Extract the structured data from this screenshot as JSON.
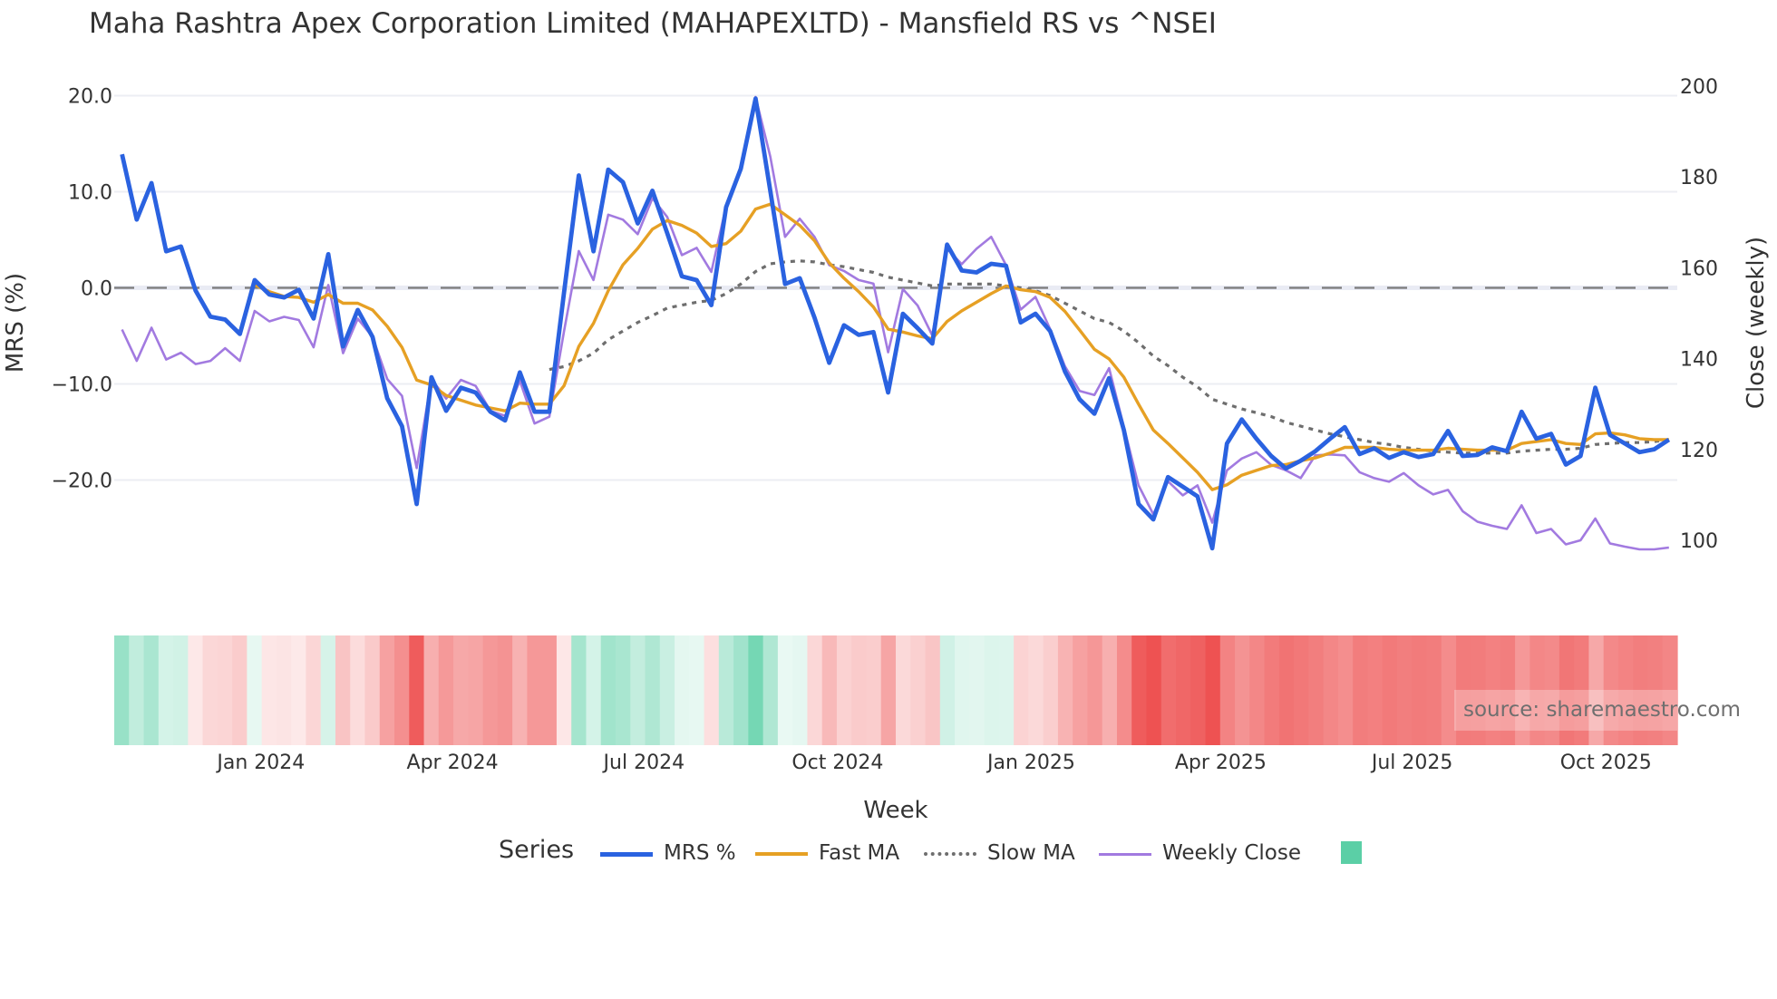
{
  "title": "Maha Rashtra Apex Corporation Limited (MAHAPEXLTD) - Mansfield RS vs ^NSEI",
  "source_label": "source: sharemaestro.com",
  "colors": {
    "mrs": "#2a62e0",
    "fast_ma": "#e6a024",
    "slow_ma": "#6e6e6e",
    "close": "#a27ae0",
    "heat_pos": "#5bcfa6",
    "heat_neg": "#ee5252",
    "zero_line": "#7a7a7a",
    "grid": "#eceef3"
  },
  "legend": {
    "title": "Series",
    "items": [
      {
        "label": "MRS %",
        "key": "mrs"
      },
      {
        "label": "Fast MA",
        "key": "fast_ma"
      },
      {
        "label": "Slow MA",
        "key": "slow_ma"
      },
      {
        "label": "Weekly Close",
        "key": "close"
      },
      {
        "label": "",
        "key": "heat"
      }
    ]
  },
  "chart_data": {
    "type": "line",
    "title": "Maha Rashtra Apex Corporation Limited (MAHAPEXLTD) - Mansfield RS vs ^NSEI",
    "xlabel": "Week",
    "ylabel": "MRS (%)",
    "y2label": "Close (weekly)",
    "x_start": "2023-10-27",
    "x_step_days": 7,
    "x_ticks": [
      {
        "date": "2024-01-01",
        "label": "Jan 2024"
      },
      {
        "date": "2024-04-01",
        "label": "Apr 2024"
      },
      {
        "date": "2024-07-01",
        "label": "Jul 2024"
      },
      {
        "date": "2024-10-01",
        "label": "Oct 2024"
      },
      {
        "date": "2025-01-01",
        "label": "Jan 2025"
      },
      {
        "date": "2025-04-01",
        "label": "Apr 2025"
      },
      {
        "date": "2025-07-01",
        "label": "Jul 2025"
      },
      {
        "date": "2025-10-01",
        "label": "Oct 2025"
      }
    ],
    "y_ticks": [
      {
        "v": 20,
        "label": "20.0"
      },
      {
        "v": 10,
        "label": "10.0"
      },
      {
        "v": 0,
        "label": "0.0"
      },
      {
        "v": -10,
        "label": "−10.0"
      },
      {
        "v": -20,
        "label": "−20.0"
      }
    ],
    "y2_ticks": [
      {
        "v": 200,
        "label": "200"
      },
      {
        "v": 180,
        "label": "180"
      },
      {
        "v": 160,
        "label": "160"
      },
      {
        "v": 140,
        "label": "140"
      },
      {
        "v": 120,
        "label": "120"
      },
      {
        "v": 100,
        "label": "100"
      }
    ],
    "grid": true,
    "legend_position": "bottom",
    "series": [
      {
        "name": "MRS %",
        "key": "mrs",
        "axis": "y",
        "values": [
          13.9,
          7.1,
          10.9,
          3.8,
          4.3,
          -0.3,
          -3.0,
          -3.3,
          -4.8,
          0.8,
          -0.7,
          -1.0,
          -0.2,
          -3.2,
          3.5,
          -6.1,
          -2.3,
          -5.1,
          -11.5,
          -14.4,
          -22.5,
          -9.3,
          -12.8,
          -10.4,
          -10.9,
          -12.9,
          -13.8,
          -8.8,
          -12.9,
          -12.9,
          -0.5,
          11.7,
          3.8,
          12.3,
          11.0,
          6.7,
          10.1,
          5.7,
          1.2,
          0.8,
          -1.8,
          8.4,
          12.4,
          19.7,
          10.1,
          0.4,
          1.0,
          -3.1,
          -7.8,
          -3.9,
          -4.9,
          -4.6,
          -10.9,
          -2.7,
          -4.2,
          -5.8,
          4.5,
          1.8,
          1.6,
          2.5,
          2.3,
          -3.6,
          -2.7,
          -4.5,
          -8.7,
          -11.6,
          -13.1,
          -9.4,
          -14.8,
          -22.5,
          -24.1,
          -19.7,
          -20.7,
          -21.7,
          -27.1,
          -16.2,
          -13.7,
          -15.7,
          -17.5,
          -18.8,
          -18.0,
          -17.0,
          -15.7,
          -14.5,
          -17.3,
          -16.7,
          -17.7,
          -17.1,
          -17.6,
          -17.3,
          -14.9,
          -17.5,
          -17.4,
          -16.6,
          -17.0,
          -12.9,
          -15.7,
          -15.2,
          -18.4,
          -17.5,
          -10.4,
          -15.3,
          -16.2,
          -17.1,
          -16.8,
          -15.8
        ]
      },
      {
        "name": "Fast MA",
        "key": "fast_ma",
        "axis": "y",
        "values": [
          null,
          null,
          null,
          null,
          null,
          null,
          null,
          null,
          null,
          0.3,
          -0.4,
          -0.9,
          -1.0,
          -1.5,
          -0.7,
          -1.6,
          -1.6,
          -2.3,
          -4.0,
          -6.2,
          -9.6,
          -10.1,
          -11.2,
          -11.7,
          -12.2,
          -12.5,
          -12.8,
          -12.0,
          -12.1,
          -12.1,
          -10.2,
          -6.1,
          -3.7,
          -0.3,
          2.4,
          4.1,
          6.1,
          7.0,
          6.5,
          5.7,
          4.3,
          4.6,
          5.9,
          8.2,
          8.7,
          7.6,
          6.5,
          4.9,
          2.6,
          1.0,
          -0.4,
          -2.0,
          -4.3,
          -4.6,
          -5.0,
          -5.3,
          -3.5,
          -2.4,
          -1.5,
          -0.6,
          0.2,
          -0.2,
          -0.4,
          -1.0,
          -2.45,
          -4.4,
          -6.4,
          -7.4,
          -9.3,
          -12.1,
          -14.8,
          -16.2,
          -17.7,
          -19.2,
          -21.0,
          -20.5,
          -19.5,
          -19.0,
          -18.5,
          -18.4,
          -18.0,
          -17.7,
          -17.2,
          -16.6,
          -16.6,
          -16.6,
          -16.8,
          -16.9,
          -16.9,
          -16.9,
          -16.7,
          -16.8,
          -16.9,
          -16.9,
          -16.9,
          -16.2,
          -16.0,
          -15.8,
          -16.2,
          -16.3,
          -15.2,
          -15.1,
          -15.3,
          -15.7,
          -15.8,
          -15.8
        ]
      },
      {
        "name": "Slow MA",
        "key": "slow_ma",
        "axis": "y",
        "values": [
          null,
          null,
          null,
          null,
          null,
          null,
          null,
          null,
          null,
          null,
          null,
          null,
          null,
          null,
          null,
          null,
          null,
          null,
          null,
          null,
          null,
          null,
          null,
          null,
          null,
          null,
          null,
          null,
          null,
          -8.5,
          -8.2,
          -7.6,
          -6.8,
          -5.4,
          -4.5,
          -3.6,
          -2.9,
          -2.1,
          -1.8,
          -1.5,
          -1.3,
          -0.6,
          0.4,
          1.7,
          2.5,
          2.7,
          2.8,
          2.7,
          2.4,
          2.2,
          1.9,
          1.6,
          1.1,
          0.8,
          0.5,
          0.2,
          0.4,
          0.4,
          0.4,
          0.4,
          0.2,
          0.0,
          -0.3,
          -0.8,
          -1.6,
          -2.4,
          -3.2,
          -3.6,
          -4.5,
          -5.7,
          -7.1,
          -8.1,
          -9.3,
          -10.3,
          -11.6,
          -12.1,
          -12.6,
          -13.0,
          -13.4,
          -14.0,
          -14.4,
          -14.8,
          -15.2,
          -15.5,
          -15.8,
          -16.1,
          -16.3,
          -16.6,
          -16.8,
          -17.0,
          -17.1,
          -17.2,
          -17.2,
          -17.2,
          -17.2,
          -17.0,
          -16.9,
          -16.8,
          -16.8,
          -16.7,
          -16.3,
          -16.2,
          -16.1,
          -16.1,
          -16.0,
          -15.8
        ]
      },
      {
        "name": "Weekly Close",
        "key": "close",
        "axis": "y2",
        "values": [
          146.4,
          139.5,
          146.8,
          139.8,
          141.3,
          138.8,
          139.5,
          142.3,
          139.5,
          150.5,
          148.2,
          149.2,
          148.5,
          142.5,
          156.2,
          141.2,
          148.8,
          144.8,
          135.5,
          131.8,
          115.9,
          135.5,
          131.2,
          135.3,
          134.0,
          128.5,
          127.4,
          135.1,
          125.7,
          127.2,
          146.0,
          163.7,
          157.3,
          171.7,
          170.6,
          167.4,
          175.3,
          171.2,
          162.8,
          164.4,
          159.1,
          173.6,
          182.1,
          197.6,
          184.5,
          166.8,
          170.8,
          166.8,
          160.6,
          159.3,
          157.3,
          156.5,
          141.4,
          155.3,
          151.7,
          145.1,
          164.2,
          160.8,
          164.2,
          166.8,
          160.6,
          150.8,
          153.6,
          146.5,
          138.3,
          132.9,
          132.0,
          137.9,
          125.0,
          112.1,
          105.7,
          113.0,
          109.9,
          112.1,
          103.9,
          115.4,
          118.0,
          119.4,
          116.6,
          115.4,
          113.7,
          118.7,
          118.9,
          118.7,
          115.0,
          113.7,
          112.9,
          114.8,
          112.1,
          110.1,
          111.1,
          106.4,
          104.1,
          103.2,
          102.5,
          107.7,
          101.6,
          102.5,
          99.1,
          100.0,
          104.8,
          99.3,
          98.6,
          98.0,
          98.0,
          98.4
        ]
      }
    ]
  }
}
